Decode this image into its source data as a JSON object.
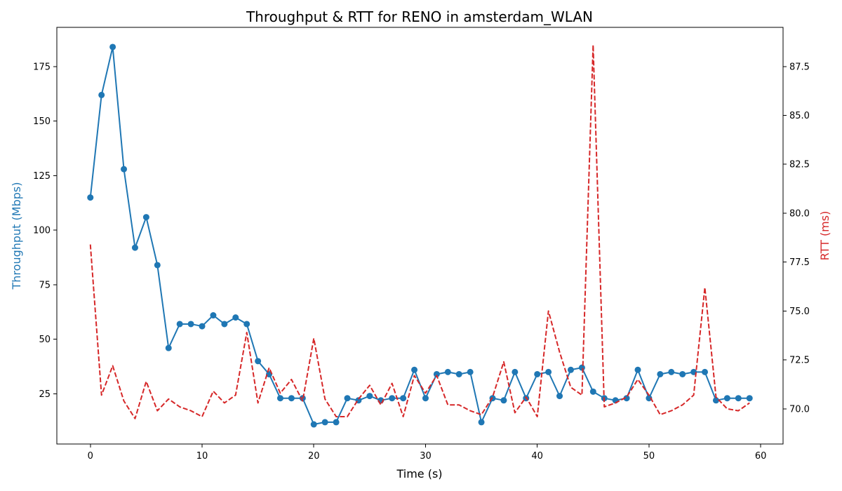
{
  "chart_data": {
    "type": "line",
    "title": "Throughput & RTT for RENO in amsterdam_WLAN",
    "xlabel": "Time (s)",
    "ylabel_left": "Throughput (Mbps)",
    "ylabel_right": "RTT (ms)",
    "xlim": [
      -3,
      62
    ],
    "ylim_left": [
      2,
      193
    ],
    "ylim_right": [
      68.2,
      89.5
    ],
    "x_ticks": [
      0,
      10,
      20,
      30,
      40,
      50,
      60
    ],
    "y_left_ticks": [
      25,
      50,
      75,
      100,
      125,
      150,
      175
    ],
    "y_right_ticks": [
      "70.0",
      "72.5",
      "75.0",
      "77.5",
      "80.0",
      "82.5",
      "85.0",
      "87.5"
    ],
    "grid": false,
    "x": [
      0,
      1,
      2,
      3,
      4,
      5,
      6,
      7,
      8,
      9,
      10,
      11,
      12,
      13,
      14,
      15,
      16,
      17,
      18,
      19,
      20,
      21,
      22,
      23,
      24,
      25,
      26,
      27,
      28,
      29,
      30,
      31,
      32,
      33,
      34,
      35,
      36,
      37,
      38,
      39,
      40,
      41,
      42,
      43,
      44,
      45,
      46,
      47,
      48,
      49,
      50,
      51,
      52,
      53,
      54,
      55,
      56,
      57,
      58,
      59
    ],
    "series": [
      {
        "axis": "left",
        "color": "#1f77b4",
        "style": "solid-markers",
        "values": [
          115,
          162,
          184,
          128,
          92,
          106,
          84,
          46,
          57,
          57,
          56,
          61,
          57,
          60,
          57,
          40,
          34,
          23,
          23,
          23,
          11,
          12,
          12,
          23,
          22,
          24,
          22,
          23,
          23,
          36,
          23,
          34,
          35,
          34,
          35,
          12,
          23,
          22,
          35,
          23,
          34,
          35,
          24,
          36,
          37,
          26,
          23,
          22,
          23,
          36,
          23,
          34,
          35,
          34,
          35,
          35,
          22,
          23,
          23,
          23
        ]
      },
      {
        "axis": "right",
        "color": "#d62728",
        "style": "dashed",
        "values": [
          78.4,
          70.7,
          72.2,
          70.4,
          69.5,
          71.4,
          69.9,
          70.5,
          70.1,
          69.9,
          69.6,
          70.9,
          70.3,
          70.7,
          73.9,
          70.3,
          72.1,
          70.8,
          71.5,
          70.4,
          73.6,
          70.5,
          69.6,
          69.6,
          70.5,
          71.2,
          70.2,
          71.3,
          69.6,
          71.7,
          70.8,
          71.7,
          70.2,
          70.2,
          69.9,
          69.7,
          70.6,
          72.4,
          69.8,
          70.6,
          69.6,
          75.0,
          72.9,
          71.1,
          70.7,
          88.6,
          70.1,
          70.3,
          70.6,
          71.5,
          70.7,
          69.7,
          69.9,
          70.2,
          70.7,
          76.2,
          70.6,
          70.0,
          69.9,
          70.3
        ]
      }
    ]
  },
  "colors": {
    "throughput": "#1f77b4",
    "rtt": "#d62728",
    "axes": "#000000"
  }
}
